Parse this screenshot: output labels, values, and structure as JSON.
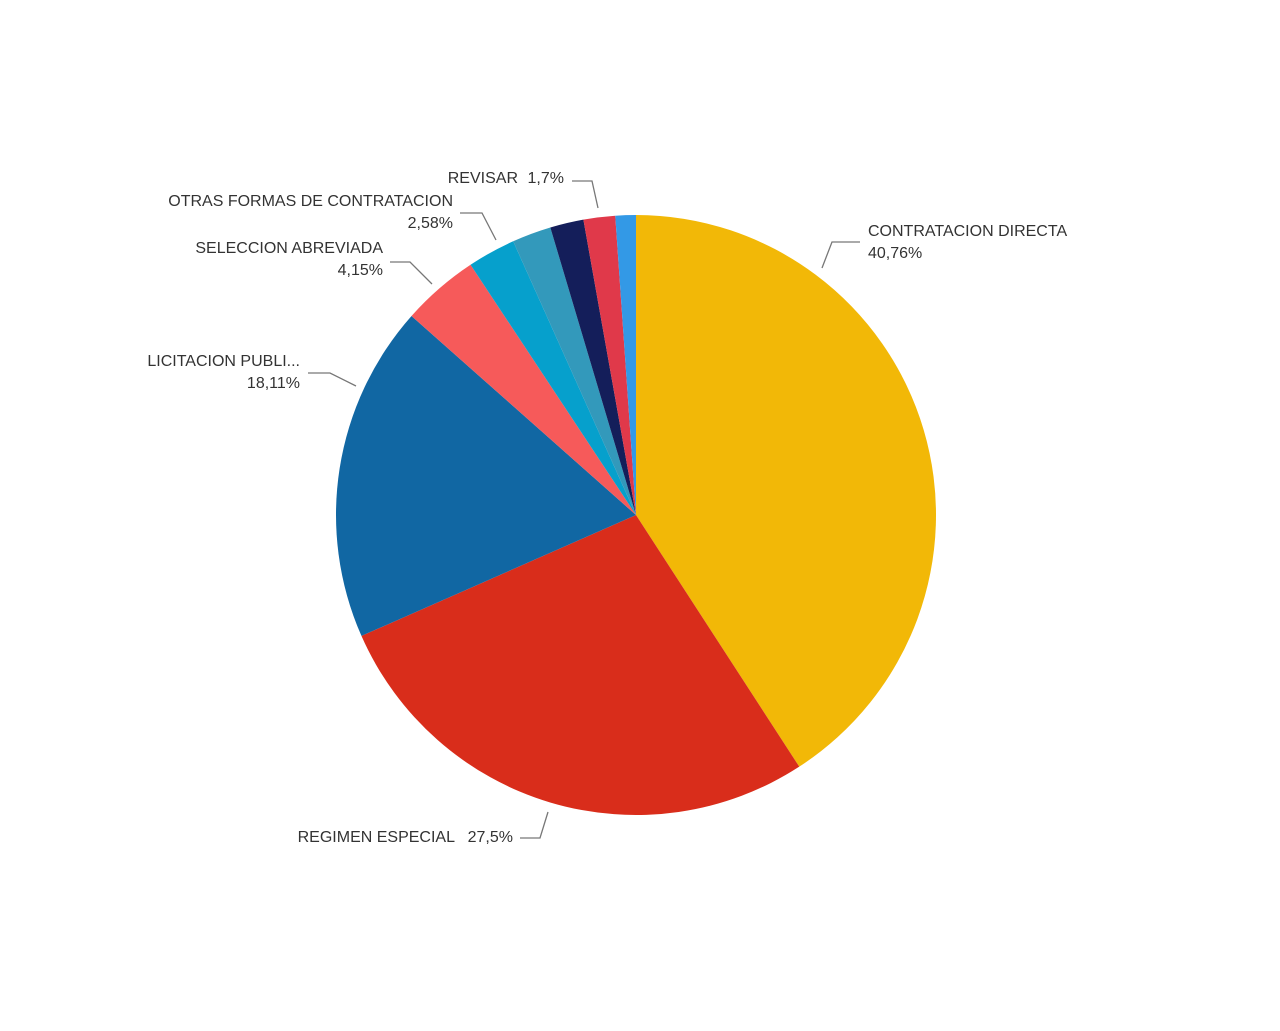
{
  "chart_data": {
    "type": "pie",
    "categories": [
      "CONTRATACION DIRECTA",
      "REGIMEN ESPECIAL",
      "LICITACION PUBLI...",
      "SELECCION ABREVIADA",
      "OTRAS FORMAS DE CONTRATACION",
      null,
      null,
      "REVISAR",
      null
    ],
    "values": [
      40.76,
      27.5,
      18.11,
      4.15,
      2.58,
      2.1,
      1.8,
      1.7,
      1.1
    ],
    "value_labels": [
      "40,76%",
      "27,5%",
      "18,11%",
      "4,15%",
      "2,58%",
      null,
      null,
      "1,7%",
      null
    ],
    "colors": [
      "#f2b807",
      "#d92d1b",
      "#1167a3",
      "#f65a5a",
      "#06a0cc",
      "#3399bb",
      "#141e5a",
      "#e0394a",
      "#3399e6"
    ]
  }
}
